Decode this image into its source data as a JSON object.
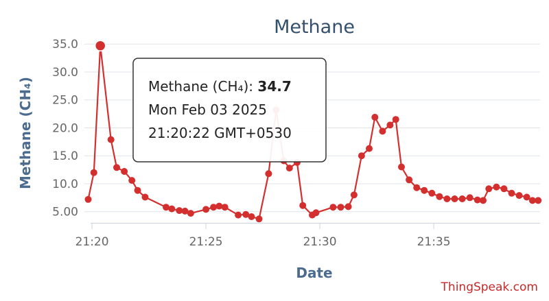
{
  "colors": {
    "series": "#d32f2f",
    "title": "#34506b",
    "axis_label": "#4b6b8f",
    "grid": "#dfe3e8",
    "tick": "#666666",
    "credit": "#c62828"
  },
  "credit": "ThingSpeak.com",
  "tooltip": {
    "label": "Methane (CH₄): ",
    "value": "34.7",
    "date": "Mon Feb 03 2025",
    "time": "21:20:22 GMT+0530"
  },
  "chart_data": {
    "type": "line",
    "title": "Methane",
    "xlabel": "Date",
    "ylabel": "Methane (CH₄)",
    "ylim": [
      3.0,
      36.5
    ],
    "yticks": [
      5.0,
      10.0,
      15.0,
      20.0,
      25.0,
      30.0,
      35.0
    ],
    "yticklabels": [
      "5.00",
      "10.0",
      "15.0",
      "20.0",
      "25.0",
      "30.0",
      "35.0"
    ],
    "xlim": [
      "21:19:40",
      "21:39:40"
    ],
    "xticks": [
      "21:20",
      "21:25",
      "21:30",
      "21:35"
    ],
    "grid": true,
    "legend": "none",
    "highlighted_point": [
      "21:20:22",
      34.7
    ],
    "series": [
      {
        "name": "Methane (CH₄)",
        "points": [
          [
            "21:19:50",
            7.2
          ],
          [
            "21:20:05",
            12.0
          ],
          [
            "21:20:22",
            34.7
          ],
          [
            "21:20:50",
            17.9
          ],
          [
            "21:21:05",
            12.9
          ],
          [
            "21:21:25",
            12.2
          ],
          [
            "21:21:45",
            10.6
          ],
          [
            "21:22:00",
            8.8
          ],
          [
            "21:22:20",
            7.6
          ],
          [
            "21:23:15",
            5.8
          ],
          [
            "21:23:30",
            5.5
          ],
          [
            "21:23:50",
            5.2
          ],
          [
            "21:24:05",
            5.1
          ],
          [
            "21:24:20",
            4.7
          ],
          [
            "21:25:00",
            5.4
          ],
          [
            "21:25:20",
            5.8
          ],
          [
            "21:25:35",
            6.0
          ],
          [
            "21:25:50",
            5.8
          ],
          [
            "21:26:25",
            4.4
          ],
          [
            "21:26:45",
            4.5
          ],
          [
            "21:27:00",
            4.1
          ],
          [
            "21:27:20",
            3.7
          ],
          [
            "21:27:45",
            11.8
          ],
          [
            "21:28:05",
            23.2
          ],
          [
            "21:28:25",
            14.1
          ],
          [
            "21:28:40",
            12.8
          ],
          [
            "21:29:00",
            13.8
          ],
          [
            "21:29:15",
            6.1
          ],
          [
            "21:29:40",
            4.4
          ],
          [
            "21:29:50",
            4.8
          ],
          [
            "21:30:35",
            5.8
          ],
          [
            "21:30:55",
            5.8
          ],
          [
            "21:31:15",
            5.9
          ],
          [
            "21:31:30",
            8.0
          ],
          [
            "21:31:50",
            15.0
          ],
          [
            "21:32:10",
            16.3
          ],
          [
            "21:32:25",
            21.9
          ],
          [
            "21:32:45",
            19.4
          ],
          [
            "21:33:05",
            20.5
          ],
          [
            "21:33:20",
            21.5
          ],
          [
            "21:33:35",
            13.0
          ],
          [
            "21:33:55",
            10.7
          ],
          [
            "21:34:15",
            9.3
          ],
          [
            "21:34:35",
            8.8
          ],
          [
            "21:34:55",
            8.3
          ],
          [
            "21:35:15",
            7.7
          ],
          [
            "21:35:35",
            7.3
          ],
          [
            "21:35:55",
            7.3
          ],
          [
            "21:36:15",
            7.3
          ],
          [
            "21:36:35",
            7.5
          ],
          [
            "21:36:55",
            7.1
          ],
          [
            "21:37:10",
            7.0
          ],
          [
            "21:37:25",
            9.1
          ],
          [
            "21:37:45",
            9.4
          ],
          [
            "21:38:05",
            9.1
          ],
          [
            "21:38:25",
            8.3
          ],
          [
            "21:38:45",
            7.9
          ],
          [
            "21:39:05",
            7.6
          ],
          [
            "21:39:20",
            7.0
          ],
          [
            "21:39:35",
            7.0
          ]
        ]
      }
    ]
  }
}
